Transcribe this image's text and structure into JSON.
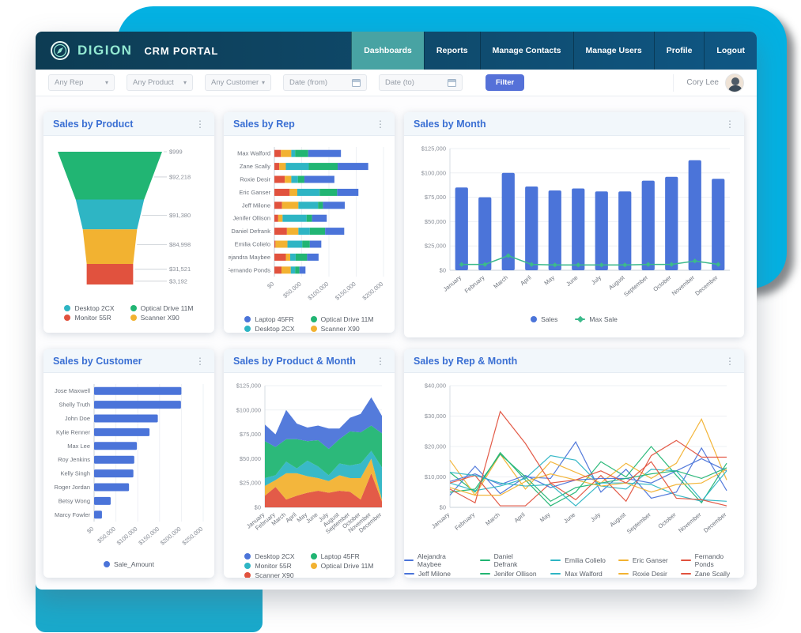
{
  "brand": {
    "logo_text": "DIGION",
    "subtitle": "CRM PORTAL"
  },
  "nav": {
    "items": [
      {
        "label": "Dashboards",
        "active": true
      },
      {
        "label": "Reports",
        "active": false
      },
      {
        "label": "Manage Contacts",
        "active": false
      },
      {
        "label": "Manage Users",
        "active": false
      },
      {
        "label": "Profile",
        "active": false
      },
      {
        "label": "Logout",
        "active": false
      }
    ]
  },
  "filters": {
    "selects": [
      "Any Rep",
      "Any Product",
      "Any Customer"
    ],
    "date_from": "Date (from)",
    "date_to": "Date (to)",
    "filter_button": "Filter"
  },
  "user": {
    "name": "Cory Lee"
  },
  "ui": {
    "menu_icon": "⋮",
    "chevron_icon": "▾"
  },
  "palette": {
    "blue": "#4b74d9",
    "teal": "#2eb5c4",
    "red": "#e1523e",
    "green": "#21b573",
    "yellow": "#f2b231",
    "line_green": "#3cba8b"
  },
  "chart_data": [
    {
      "id": "product",
      "type": "funnel",
      "title": "Sales by Product",
      "segments": [
        {
          "label": "Optical Drive 11M",
          "color": "green"
        },
        {
          "label": "Desktop 2CX",
          "color": "teal"
        },
        {
          "label": "Scanner X90",
          "color": "yellow"
        },
        {
          "label": "Monitor 55R",
          "color": "red"
        }
      ],
      "right_labels": [
        "$999",
        "$92,218",
        "$91,380",
        "$84,998",
        "$31,521",
        "$3,192"
      ],
      "legend": [
        {
          "label": "Desktop 2CX",
          "color": "teal",
          "marker": "dot"
        },
        {
          "label": "Optical Drive 11M",
          "color": "green",
          "marker": "dot"
        },
        {
          "label": "Monitor 55R",
          "color": "red",
          "marker": "dot"
        },
        {
          "label": "Scanner X90",
          "color": "yellow",
          "marker": "dot"
        }
      ]
    },
    {
      "id": "rep",
      "type": "stacked_hbar",
      "title": "Sales by Rep",
      "categories": [
        "Max Walford",
        "Zane Scally",
        "Roxie Desir",
        "Eric Ganser",
        "Jeff Milone",
        "Jenifer Ollison",
        "Daniel Defrank",
        "Emilia Colielo",
        "Alejandra Maybee",
        "Fernando Ponds"
      ],
      "xmax": 200000,
      "xstep": 50000,
      "series": [
        {
          "name": "Monitor 55R",
          "color": "red",
          "values": [
            12000,
            9000,
            19000,
            28000,
            14000,
            7000,
            23000,
            2000,
            21000,
            13000
          ]
        },
        {
          "name": "Scanner X90",
          "color": "yellow",
          "values": [
            19000,
            12000,
            12000,
            14000,
            30000,
            8000,
            21000,
            22000,
            8000,
            17000
          ]
        },
        {
          "name": "Desktop 2CX",
          "color": "teal",
          "values": [
            7000,
            42000,
            12000,
            41000,
            36000,
            44000,
            21000,
            27000,
            10000,
            8000
          ]
        },
        {
          "name": "Optical Drive 11M",
          "color": "green",
          "values": [
            24000,
            53000,
            12000,
            32000,
            9000,
            10000,
            28000,
            14000,
            21000,
            8000
          ]
        },
        {
          "name": "Laptop 45FR",
          "color": "blue",
          "values": [
            60000,
            56000,
            55000,
            39000,
            40000,
            27000,
            35000,
            21000,
            21000,
            11000
          ]
        }
      ],
      "legend": [
        {
          "label": "Laptop 45FR",
          "color": "blue",
          "marker": "dot"
        },
        {
          "label": "Optical Drive 11M",
          "color": "green",
          "marker": "dot"
        },
        {
          "label": "Desktop 2CX",
          "color": "teal",
          "marker": "dot"
        },
        {
          "label": "Scanner X90",
          "color": "yellow",
          "marker": "dot"
        },
        {
          "label": "Monitor 55R",
          "color": "red",
          "marker": "dot"
        }
      ]
    },
    {
      "id": "month",
      "type": "bar_line",
      "title": "Sales by Month",
      "categories": [
        "January",
        "February",
        "March",
        "April",
        "May",
        "June",
        "July",
        "August",
        "September",
        "October",
        "November",
        "December"
      ],
      "ymax": 125000,
      "ystep": 25000,
      "bars": {
        "name": "Sales",
        "color": "blue",
        "values": [
          85000,
          75000,
          100000,
          86000,
          82000,
          84000,
          81000,
          81000,
          92000,
          96000,
          113000,
          94000
        ]
      },
      "line": {
        "name": "Max Sale",
        "color": "line_green",
        "values": [
          6000,
          6000,
          15000,
          6000,
          5500,
          5500,
          5500,
          5500,
          6000,
          6000,
          9500,
          6000
        ]
      },
      "legend": [
        {
          "label": "Sales",
          "color": "blue",
          "marker": "dot"
        },
        {
          "label": "Max Sale",
          "color": "line_green",
          "marker": "line-diamond"
        }
      ]
    },
    {
      "id": "customer",
      "type": "hbar",
      "title": "Sales by Customer",
      "categories": [
        "Jose Maxwell",
        "Shelly Truth",
        "John Doe",
        "Kylie Renner",
        "Max Lee",
        "Roy Jenkins",
        "Kelly Singh",
        "Roger Jordan",
        "Betsy Wong",
        "Marcy Fowler"
      ],
      "xmax": 250000,
      "xstep": 50000,
      "values": [
        200000,
        199000,
        146000,
        127000,
        98000,
        92000,
        90000,
        80000,
        38000,
        18000
      ],
      "bar_color": "blue",
      "legend": [
        {
          "label": "Sale_Amount",
          "color": "blue",
          "marker": "dot"
        }
      ]
    },
    {
      "id": "product_month",
      "type": "stacked_area",
      "title": "Sales by Product & Month",
      "categories": [
        "January",
        "February",
        "March",
        "April",
        "May",
        "June",
        "July",
        "August",
        "September",
        "October",
        "November",
        "December"
      ],
      "ymax": 125000,
      "ystep": 25000,
      "series": [
        {
          "name": "Scanner X90",
          "color": "red",
          "values": [
            12000,
            21000,
            8000,
            12000,
            15000,
            17000,
            15000,
            17000,
            16000,
            8000,
            35000,
            6000
          ]
        },
        {
          "name": "Optical Drive 11M",
          "color": "yellow",
          "values": [
            10000,
            7000,
            27000,
            23000,
            17000,
            13000,
            12000,
            16000,
            14000,
            22000,
            15000,
            2000
          ]
        },
        {
          "name": "Monitor 55R",
          "color": "teal",
          "values": [
            8000,
            5000,
            12000,
            5000,
            16000,
            12000,
            6000,
            12000,
            13000,
            15000,
            8000,
            33000
          ]
        },
        {
          "name": "Laptop 45FR",
          "color": "green",
          "values": [
            38000,
            29000,
            23000,
            30000,
            20000,
            27000,
            27000,
            25000,
            35000,
            32000,
            26000,
            35000
          ]
        },
        {
          "name": "Desktop 2CX",
          "color": "blue",
          "values": [
            17000,
            13000,
            30000,
            16000,
            14000,
            15000,
            21000,
            11000,
            14000,
            19000,
            29000,
            18000
          ]
        }
      ],
      "legend": [
        {
          "label": "Desktop 2CX",
          "color": "blue",
          "marker": "dot"
        },
        {
          "label": "Laptop 45FR",
          "color": "green",
          "marker": "dot"
        },
        {
          "label": "Monitor 55R",
          "color": "teal",
          "marker": "dot"
        },
        {
          "label": "Optical Drive 11M",
          "color": "yellow",
          "marker": "dot"
        },
        {
          "label": "Scanner X90",
          "color": "red",
          "marker": "dot"
        }
      ]
    },
    {
      "id": "rep_month",
      "type": "multiline",
      "title": "Sales by Rep & Month",
      "categories": [
        "January",
        "February",
        "March",
        "April",
        "May",
        "June",
        "July",
        "August",
        "September",
        "October",
        "November",
        "December"
      ],
      "ymax": 40000,
      "ystep": 10000,
      "series": [
        {
          "name": "Alejandra Maybee",
          "color": "blue",
          "values": [
            4000,
            13500,
            4500,
            10000,
            9500,
            21500,
            5000,
            12500,
            3000,
            5000,
            19500,
            5500
          ]
        },
        {
          "name": "Daniel Defrank",
          "color": "green",
          "values": [
            11500,
            5000,
            18000,
            9000,
            500,
            5000,
            15000,
            10000,
            20000,
            10500,
            1500,
            14500
          ]
        },
        {
          "name": "Emilia Colielo",
          "color": "teal",
          "values": [
            8000,
            5500,
            7000,
            9500,
            17000,
            15500,
            7000,
            6000,
            12500,
            12000,
            2500,
            2000
          ]
        },
        {
          "name": "Eric Ganser",
          "color": "yellow",
          "values": [
            15500,
            4000,
            17500,
            6000,
            15000,
            11500,
            8000,
            14500,
            9500,
            14500,
            29000,
            9000
          ]
        },
        {
          "name": "Fernando Ponds",
          "color": "red",
          "values": [
            8000,
            10500,
            500,
            500,
            8000,
            2500,
            10500,
            2000,
            17000,
            22000,
            16500,
            16500
          ]
        },
        {
          "name": "Jeff Milone",
          "color": "blue",
          "values": [
            8500,
            11000,
            7500,
            10500,
            6500,
            9000,
            9500,
            9500,
            8000,
            12000,
            16000,
            12000
          ]
        },
        {
          "name": "Jenifer Ollison",
          "color": "green",
          "values": [
            5000,
            6000,
            17500,
            10000,
            2000,
            6500,
            8000,
            9500,
            11000,
            12000,
            9500,
            13000
          ]
        },
        {
          "name": "Max Walford",
          "color": "teal",
          "values": [
            11500,
            10500,
            8000,
            7000,
            7500,
            500,
            8000,
            8000,
            7500,
            4000,
            2000,
            12000
          ]
        },
        {
          "name": "Roxie Desir",
          "color": "yellow",
          "values": [
            6500,
            4000,
            4000,
            8500,
            11000,
            9000,
            7000,
            8000,
            5000,
            7500,
            8000,
            12500
          ]
        },
        {
          "name": "Zane Scally",
          "color": "red",
          "values": [
            6000,
            1500,
            31500,
            21000,
            8000,
            9000,
            12000,
            8000,
            15000,
            3000,
            2500,
            500
          ]
        }
      ],
      "legend": [
        {
          "label": "Alejandra Maybee",
          "color": "blue",
          "marker": "line"
        },
        {
          "label": "Daniel Defrank",
          "color": "green",
          "marker": "line"
        },
        {
          "label": "Emilia Colielo",
          "color": "teal",
          "marker": "line"
        },
        {
          "label": "Eric Ganser",
          "color": "yellow",
          "marker": "line"
        },
        {
          "label": "Fernando Ponds",
          "color": "red",
          "marker": "line"
        },
        {
          "label": "Jeff Milone",
          "color": "blue",
          "marker": "line"
        },
        {
          "label": "Jenifer Ollison",
          "color": "green",
          "marker": "line"
        },
        {
          "label": "Max Walford",
          "color": "teal",
          "marker": "line"
        },
        {
          "label": "Roxie Desir",
          "color": "yellow",
          "marker": "line"
        },
        {
          "label": "Zane Scally",
          "color": "red",
          "marker": "line"
        }
      ]
    }
  ]
}
